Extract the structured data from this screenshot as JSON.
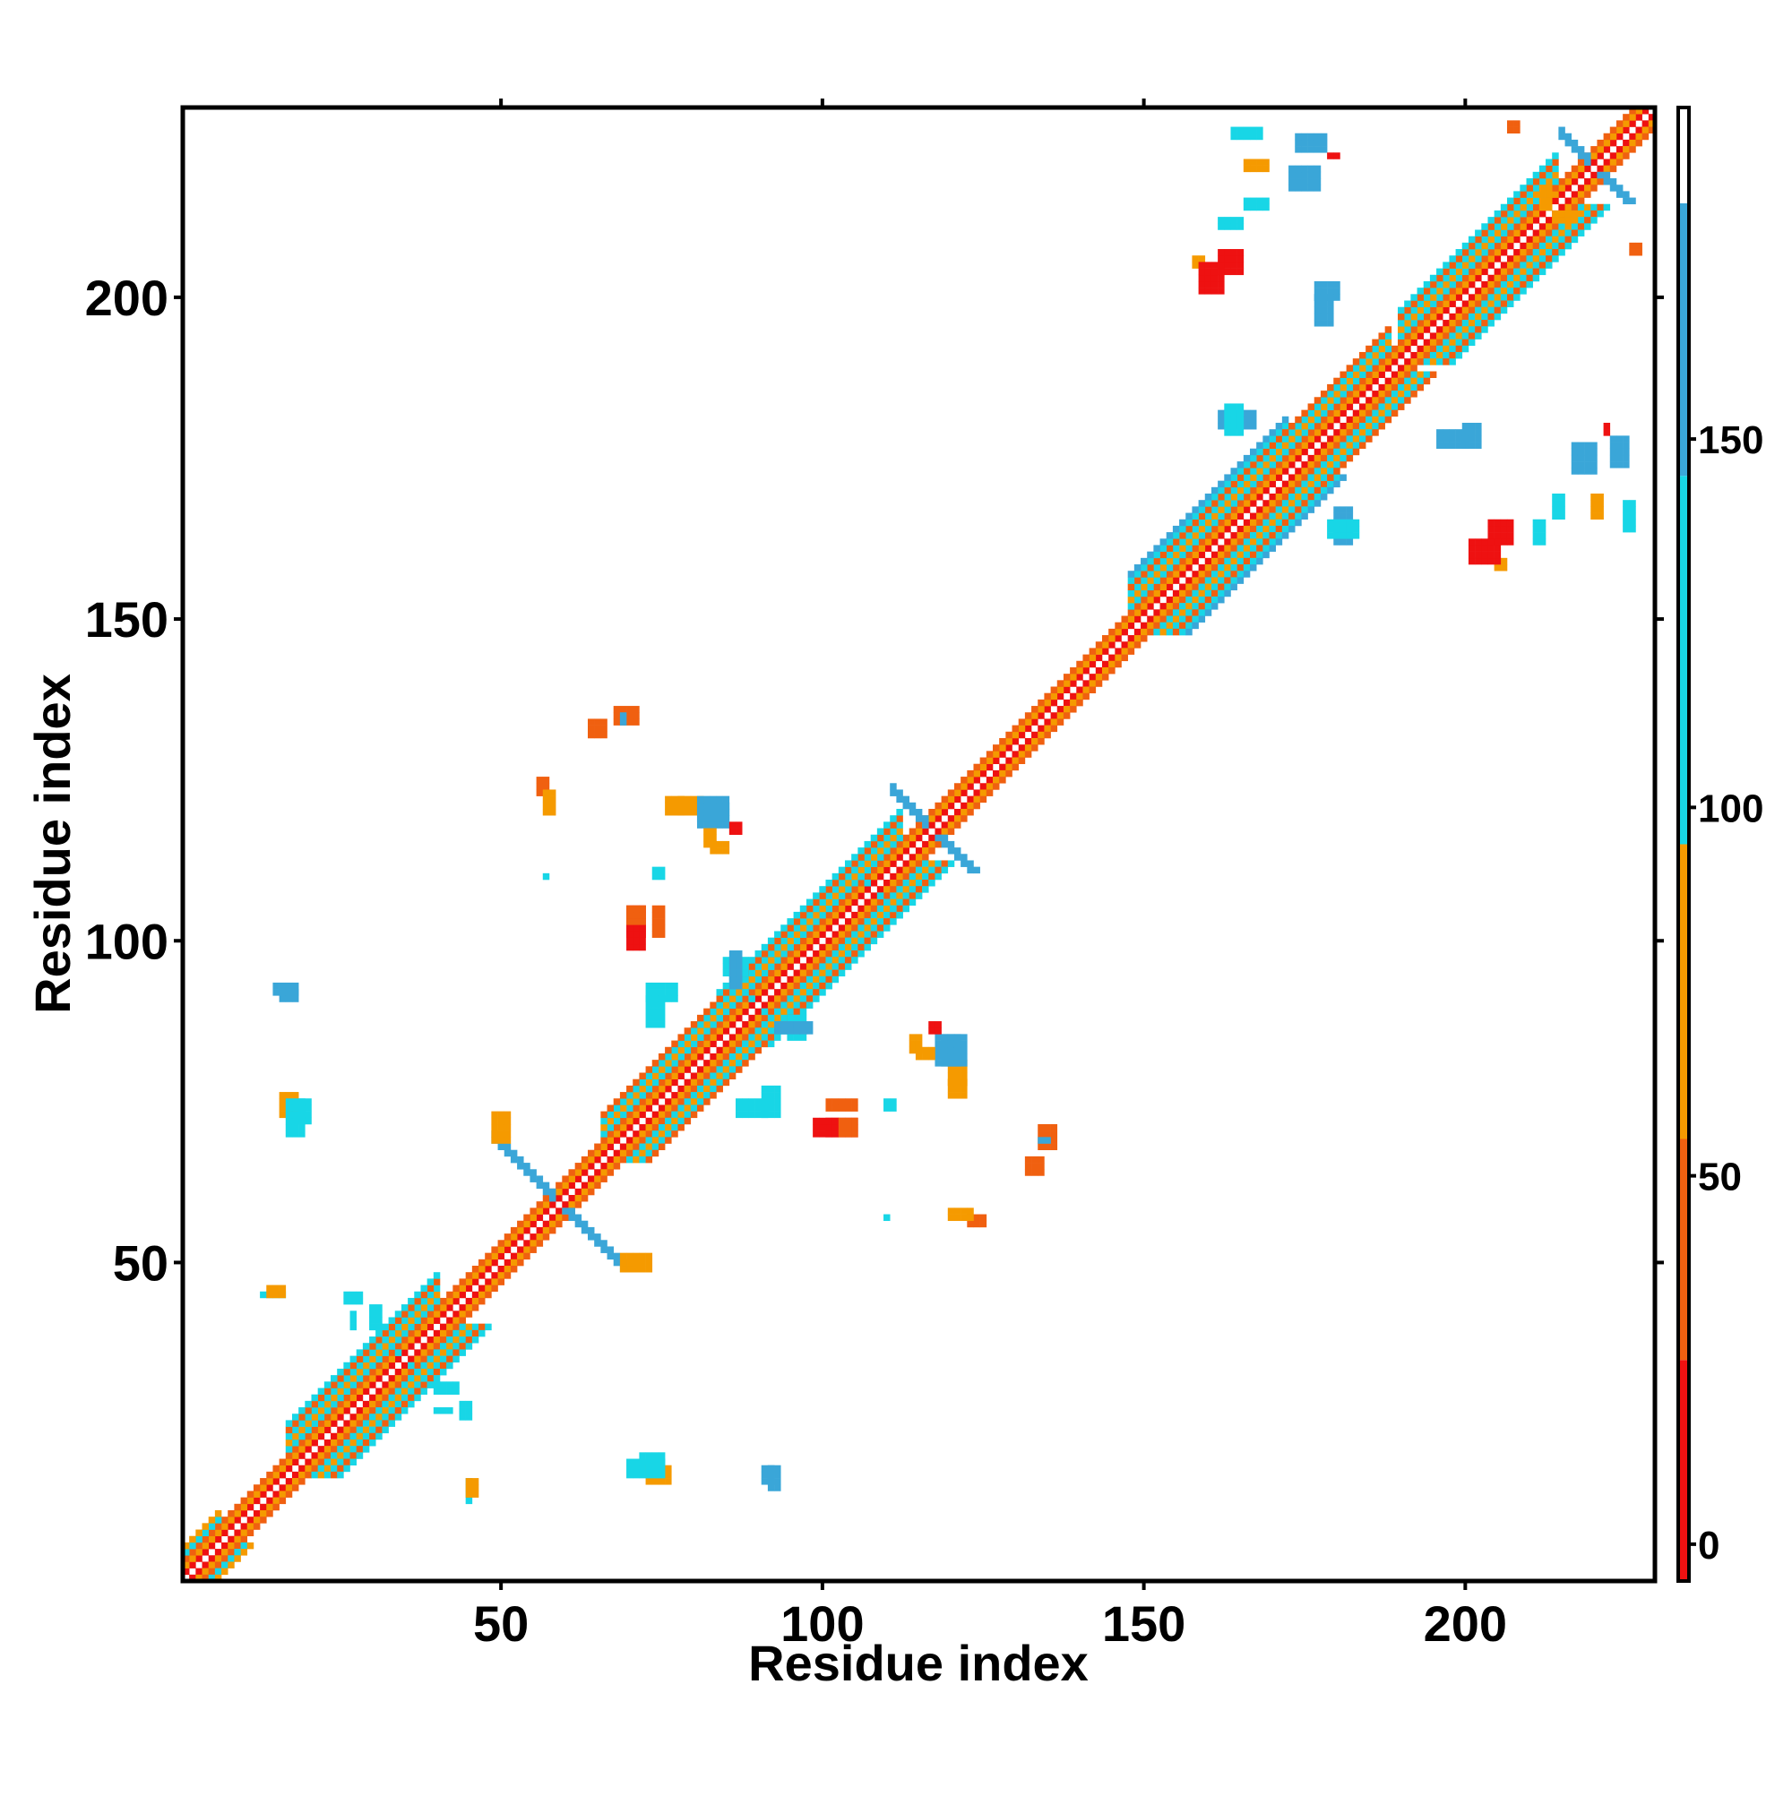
{
  "chart_data": {
    "type": "heatmap",
    "title": "",
    "xlabel": "Residue index",
    "ylabel": "Residue index",
    "xlim": [
      0.5,
      229.5
    ],
    "ylim": [
      0.5,
      229.5
    ],
    "x_ticks": [
      50,
      100,
      150,
      200
    ],
    "y_ticks": [
      50,
      100,
      150,
      200
    ],
    "symmetric": true,
    "grid": false,
    "colorbar": {
      "range": [
        -5,
        195
      ],
      "ticks": [
        0,
        50,
        100,
        150
      ],
      "bands": [
        {
          "from": -5,
          "to": 25,
          "color": "#ee1111"
        },
        {
          "from": 25,
          "to": 55,
          "color": "#f06010"
        },
        {
          "from": 55,
          "to": 95,
          "color": "#f59a00"
        },
        {
          "from": 95,
          "to": 145,
          "color": "#18d6e6"
        },
        {
          "from": 145,
          "to": 182,
          "color": "#3aa6d8"
        },
        {
          "from": 182,
          "to": 195,
          "color": "#ffffff"
        }
      ]
    },
    "diagonal_bands": [
      {
        "start": 1,
        "end": 229,
        "offset": 0,
        "color": "#ffffff"
      },
      {
        "start": 1,
        "end": 229,
        "offset": 1,
        "color": "#ee1111"
      },
      {
        "start": 1,
        "end": 229,
        "offset": 2,
        "color": "#f59a00"
      },
      {
        "start": 1,
        "end": 229,
        "offset": 3,
        "color": "#f06010"
      },
      {
        "start": 1,
        "end": 6,
        "offset": 4,
        "color": "#18d6e6"
      },
      {
        "start": 1,
        "end": 6,
        "offset": 5,
        "color": "#f59a00"
      },
      {
        "start": 17,
        "end": 40,
        "offset": 4,
        "color": "#18d6e6"
      },
      {
        "start": 17,
        "end": 40,
        "offset": 5,
        "color": "#f59a00"
      },
      {
        "start": 17,
        "end": 40,
        "offset": 6,
        "color": "#18d6e6"
      },
      {
        "start": 17,
        "end": 40,
        "offset": 7,
        "color": "#f06010"
      },
      {
        "start": 17,
        "end": 40,
        "offset": 8,
        "color": "#18d6e6"
      },
      {
        "start": 66,
        "end": 84,
        "offset": 4,
        "color": "#18d6e6"
      },
      {
        "start": 66,
        "end": 84,
        "offset": 5,
        "color": "#f59a00"
      },
      {
        "start": 66,
        "end": 84,
        "offset": 6,
        "color": "#18d6e6"
      },
      {
        "start": 66,
        "end": 84,
        "offset": 7,
        "color": "#f06010"
      },
      {
        "start": 84,
        "end": 112,
        "offset": 4,
        "color": "#18d6e6"
      },
      {
        "start": 84,
        "end": 112,
        "offset": 5,
        "color": "#f59a00"
      },
      {
        "start": 84,
        "end": 112,
        "offset": 6,
        "color": "#18d6e6"
      },
      {
        "start": 84,
        "end": 112,
        "offset": 7,
        "color": "#f06010"
      },
      {
        "start": 84,
        "end": 112,
        "offset": 8,
        "color": "#18d6e6"
      },
      {
        "start": 148,
        "end": 172,
        "offset": 4,
        "color": "#18d6e6"
      },
      {
        "start": 148,
        "end": 172,
        "offset": 5,
        "color": "#f59a00"
      },
      {
        "start": 148,
        "end": 172,
        "offset": 6,
        "color": "#18d6e6"
      },
      {
        "start": 148,
        "end": 172,
        "offset": 7,
        "color": "#f06010"
      },
      {
        "start": 148,
        "end": 172,
        "offset": 8,
        "color": "#18d6e6"
      },
      {
        "start": 148,
        "end": 172,
        "offset": 9,
        "color": "#3aa6d8"
      },
      {
        "start": 172,
        "end": 188,
        "offset": 4,
        "color": "#18d6e6"
      },
      {
        "start": 172,
        "end": 188,
        "offset": 5,
        "color": "#f59a00"
      },
      {
        "start": 172,
        "end": 188,
        "offset": 6,
        "color": "#18d6e6"
      },
      {
        "start": 172,
        "end": 188,
        "offset": 7,
        "color": "#f06010"
      },
      {
        "start": 190,
        "end": 214,
        "offset": 4,
        "color": "#18d6e6"
      },
      {
        "start": 190,
        "end": 214,
        "offset": 5,
        "color": "#f59a00"
      },
      {
        "start": 190,
        "end": 214,
        "offset": 6,
        "color": "#18d6e6"
      },
      {
        "start": 190,
        "end": 214,
        "offset": 7,
        "color": "#f06010"
      },
      {
        "start": 190,
        "end": 214,
        "offset": 8,
        "color": "#18d6e6"
      }
    ],
    "anti_diagonal_bands": [
      {
        "center": 59,
        "half_length": 10,
        "width": 2,
        "color": "#3aa6d8"
      },
      {
        "center": 117,
        "half_length": 6,
        "width": 2,
        "color": "#3aa6d8"
      },
      {
        "center": 220,
        "half_length": 5,
        "width": 2,
        "color": "#3aa6d8"
      },
      {
        "center": 35,
        "half_length": 4,
        "width": 1,
        "color": "#18d6e6"
      },
      {
        "center": 90,
        "half_length": 4,
        "width": 1,
        "color": "#18d6e6"
      },
      {
        "center": 108,
        "half_length": 4,
        "width": 1,
        "color": "#18d6e6"
      }
    ],
    "contacts": [
      {
        "x": 15,
        "y": 92,
        "w": 4,
        "h": 2,
        "color": "#3aa6d8"
      },
      {
        "x": 16,
        "y": 73,
        "w": 3,
        "h": 4,
        "color": "#f59a00"
      },
      {
        "x": 19,
        "y": 72,
        "w": 2,
        "h": 4,
        "color": "#18d6e6"
      },
      {
        "x": 13,
        "y": 45,
        "w": 4,
        "h": 1,
        "color": "#18d6e6"
      },
      {
        "x": 26,
        "y": 44,
        "w": 3,
        "h": 2,
        "color": "#18d6e6"
      },
      {
        "x": 45,
        "y": 14,
        "w": 2,
        "h": 3,
        "color": "#f59a00"
      },
      {
        "x": 40,
        "y": 27,
        "w": 3,
        "h": 1,
        "color": "#18d6e6"
      },
      {
        "x": 40,
        "y": 30,
        "w": 4,
        "h": 2,
        "color": "#18d6e6"
      },
      {
        "x": 68,
        "y": 134,
        "w": 4,
        "h": 3,
        "color": "#f06010"
      },
      {
        "x": 56,
        "y": 123,
        "w": 2,
        "h": 3,
        "color": "#f06010"
      },
      {
        "x": 70,
        "y": 101,
        "w": 3,
        "h": 5,
        "color": "#ee1111"
      },
      {
        "x": 74,
        "y": 101,
        "w": 2,
        "h": 5,
        "color": "#f06010"
      },
      {
        "x": 78,
        "y": 120,
        "w": 4,
        "h": 3,
        "color": "#f59a00"
      },
      {
        "x": 81,
        "y": 118,
        "w": 5,
        "h": 4,
        "color": "#3aa6d8"
      },
      {
        "x": 86,
        "y": 117,
        "w": 2,
        "h": 2,
        "color": "#ee1111"
      },
      {
        "x": 83,
        "y": 114,
        "w": 3,
        "h": 2,
        "color": "#f59a00"
      },
      {
        "x": 73,
        "y": 91,
        "w": 5,
        "h": 3,
        "color": "#18d6e6"
      },
      {
        "x": 85,
        "y": 95,
        "w": 4,
        "h": 3,
        "color": "#18d6e6"
      },
      {
        "x": 93,
        "y": 86,
        "w": 6,
        "h": 2,
        "color": "#3aa6d8"
      },
      {
        "x": 87,
        "y": 73,
        "w": 5,
        "h": 3,
        "color": "#18d6e6"
      },
      {
        "x": 99,
        "y": 70,
        "w": 4,
        "h": 3,
        "color": "#ee1111"
      },
      {
        "x": 103,
        "y": 70,
        "w": 3,
        "h": 3,
        "color": "#f06010"
      },
      {
        "x": 110,
        "y": 74,
        "w": 2,
        "h": 2,
        "color": "#18d6e6"
      },
      {
        "x": 115,
        "y": 82,
        "w": 3,
        "h": 2,
        "color": "#f59a00"
      },
      {
        "x": 119,
        "y": 81,
        "w": 4,
        "h": 5,
        "color": "#3aa6d8"
      },
      {
        "x": 120,
        "y": 76,
        "w": 3,
        "h": 3,
        "color": "#f59a00"
      },
      {
        "x": 132,
        "y": 64,
        "w": 3,
        "h": 3,
        "color": "#f06010"
      },
      {
        "x": 134,
        "y": 69,
        "w": 2,
        "h": 1,
        "color": "#3aa6d8"
      },
      {
        "x": 120,
        "y": 57,
        "w": 4,
        "h": 2,
        "color": "#f59a00"
      },
      {
        "x": 110,
        "y": 57,
        "w": 1,
        "h": 1,
        "color": "#18d6e6"
      },
      {
        "x": 70,
        "y": 17,
        "w": 6,
        "h": 3,
        "color": "#18d6e6"
      },
      {
        "x": 91,
        "y": 16,
        "w": 2,
        "h": 3,
        "color": "#3aa6d8"
      },
      {
        "x": 69,
        "y": 49,
        "w": 5,
        "h": 3,
        "color": "#f59a00"
      },
      {
        "x": 174,
        "y": 223,
        "w": 5,
        "h": 3,
        "color": "#3aa6d8"
      },
      {
        "x": 164,
        "y": 225,
        "w": 5,
        "h": 2,
        "color": "#18d6e6"
      },
      {
        "x": 179,
        "y": 222,
        "w": 2,
        "h": 1,
        "color": "#ee1111"
      },
      {
        "x": 162,
        "y": 204,
        "w": 4,
        "h": 4,
        "color": "#ee1111"
      },
      {
        "x": 158,
        "y": 205,
        "w": 2,
        "h": 2,
        "color": "#f59a00"
      },
      {
        "x": 177,
        "y": 200,
        "w": 4,
        "h": 3,
        "color": "#3aa6d8"
      },
      {
        "x": 162,
        "y": 180,
        "w": 6,
        "h": 3,
        "color": "#3aa6d8"
      },
      {
        "x": 196,
        "y": 177,
        "w": 5,
        "h": 3,
        "color": "#3aa6d8"
      },
      {
        "x": 217,
        "y": 173,
        "w": 4,
        "h": 5,
        "color": "#3aa6d8"
      },
      {
        "x": 220,
        "y": 166,
        "w": 2,
        "h": 4,
        "color": "#f59a00"
      },
      {
        "x": 201,
        "y": 159,
        "w": 5,
        "h": 4,
        "color": "#ee1111"
      },
      {
        "x": 211,
        "y": 162,
        "w": 2,
        "h": 4,
        "color": "#18d6e6"
      },
      {
        "x": 179,
        "y": 163,
        "w": 5,
        "h": 3,
        "color": "#18d6e6"
      },
      {
        "x": 166,
        "y": 214,
        "w": 4,
        "h": 2,
        "color": "#18d6e6"
      },
      {
        "x": 207,
        "y": 226,
        "w": 2,
        "h": 2,
        "color": "#f06010"
      },
      {
        "x": 214,
        "y": 212,
        "w": 4,
        "h": 2,
        "color": "#f59a00"
      }
    ]
  }
}
